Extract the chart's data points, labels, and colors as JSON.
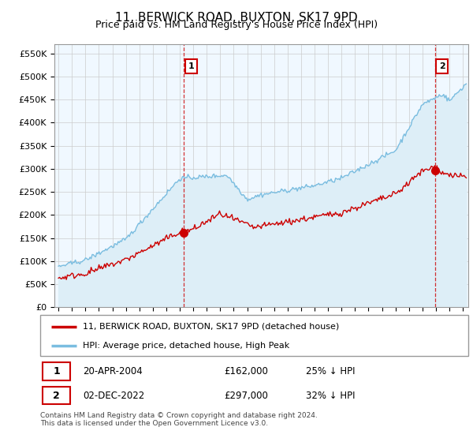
{
  "title": "11, BERWICK ROAD, BUXTON, SK17 9PD",
  "subtitle": "Price paid vs. HM Land Registry's House Price Index (HPI)",
  "ylabel_ticks": [
    "£0",
    "£50K",
    "£100K",
    "£150K",
    "£200K",
    "£250K",
    "£300K",
    "£350K",
    "£400K",
    "£450K",
    "£500K",
    "£550K"
  ],
  "ytick_values": [
    0,
    50000,
    100000,
    150000,
    200000,
    250000,
    300000,
    350000,
    400000,
    450000,
    500000,
    550000
  ],
  "ylim": [
    0,
    570000
  ],
  "xlim_start": 1994.7,
  "xlim_end": 2025.4,
  "hpi_color": "#7abde0",
  "hpi_fill_color": "#ddeef7",
  "price_color": "#cc0000",
  "marker1_x": 2004.31,
  "marker1_y": 162000,
  "marker2_x": 2022.92,
  "marker2_y": 297000,
  "legend_label1": "11, BERWICK ROAD, BUXTON, SK17 9PD (detached house)",
  "legend_label2": "HPI: Average price, detached house, High Peak",
  "footer": "Contains HM Land Registry data © Crown copyright and database right 2024.\nThis data is licensed under the Open Government Licence v3.0.",
  "grid_color": "#cccccc",
  "background_color": "#ffffff",
  "chart_bg_color": "#f0f8ff"
}
